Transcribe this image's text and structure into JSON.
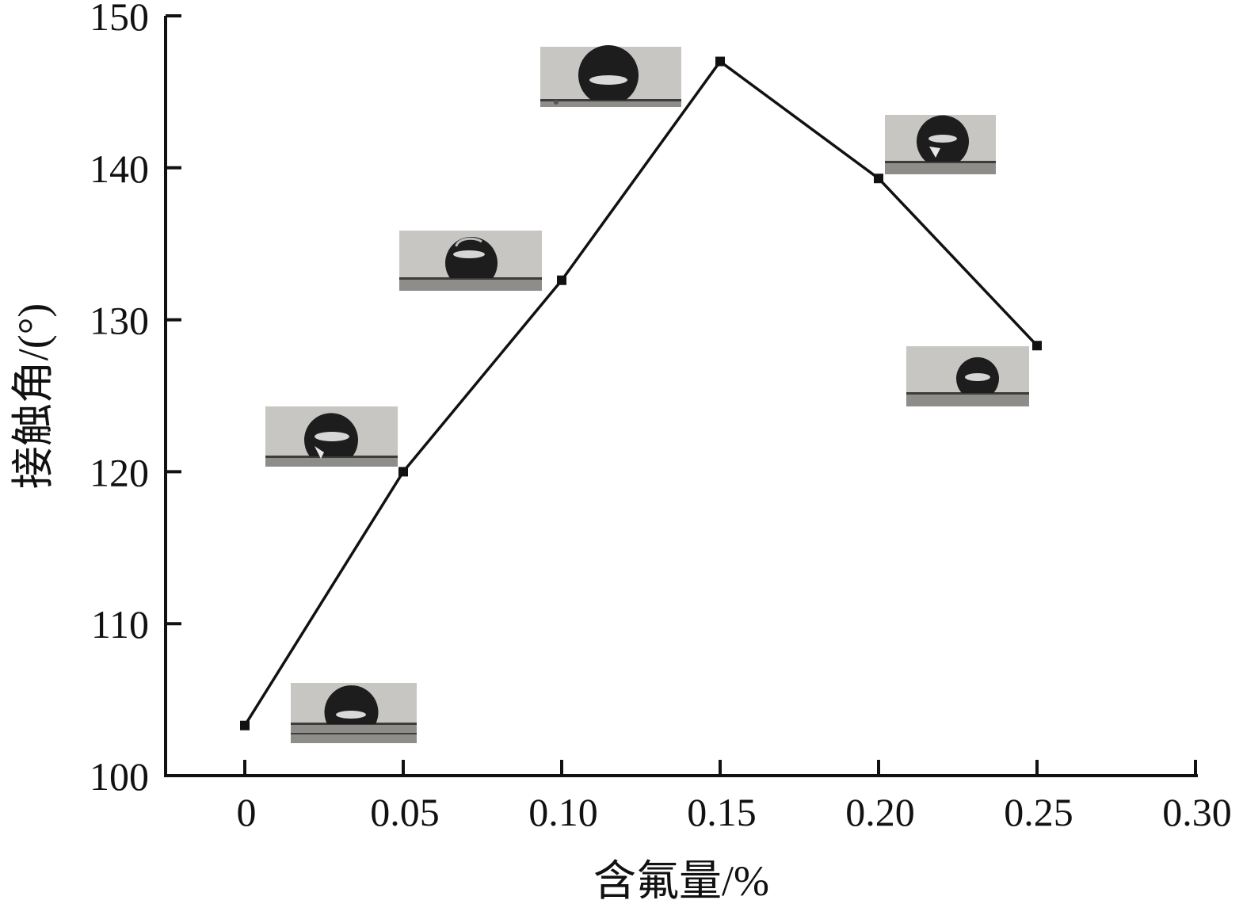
{
  "chart_data": {
    "type": "line",
    "title": "",
    "xlabel": "含氟量/%",
    "ylabel": "接触角/(°)",
    "xlim": [
      -0.025,
      0.3
    ],
    "ylim": [
      100,
      150
    ],
    "x_ticks": [
      "0",
      "0.05",
      "0.10",
      "0.15",
      "0.20",
      "0.25",
      "0.30"
    ],
    "x_tick_values": [
      0,
      0.05,
      0.1,
      0.15,
      0.2,
      0.25,
      0.3
    ],
    "y_ticks": [
      "100",
      "110",
      "120",
      "130",
      "140",
      "150"
    ],
    "y_tick_values": [
      100,
      110,
      120,
      130,
      140,
      150
    ],
    "grid": false,
    "legend": "none",
    "series": [
      {
        "x": [
          0,
          0.05,
          0.1,
          0.15,
          0.2,
          0.25
        ],
        "y": [
          103.3,
          120.0,
          132.6,
          147.0,
          139.3,
          128.3
        ],
        "color": "#111111",
        "marker": "square"
      }
    ],
    "annotations": [
      {
        "type": "droplet-photo",
        "x": 0.0,
        "y": 103.3
      },
      {
        "type": "droplet-photo",
        "x": 0.05,
        "y": 120.0
      },
      {
        "type": "droplet-photo",
        "x": 0.1,
        "y": 132.6
      },
      {
        "type": "droplet-photo",
        "x": 0.15,
        "y": 147.0
      },
      {
        "type": "droplet-photo",
        "x": 0.2,
        "y": 139.3
      },
      {
        "type": "droplet-photo",
        "x": 0.25,
        "y": 128.3
      }
    ]
  }
}
